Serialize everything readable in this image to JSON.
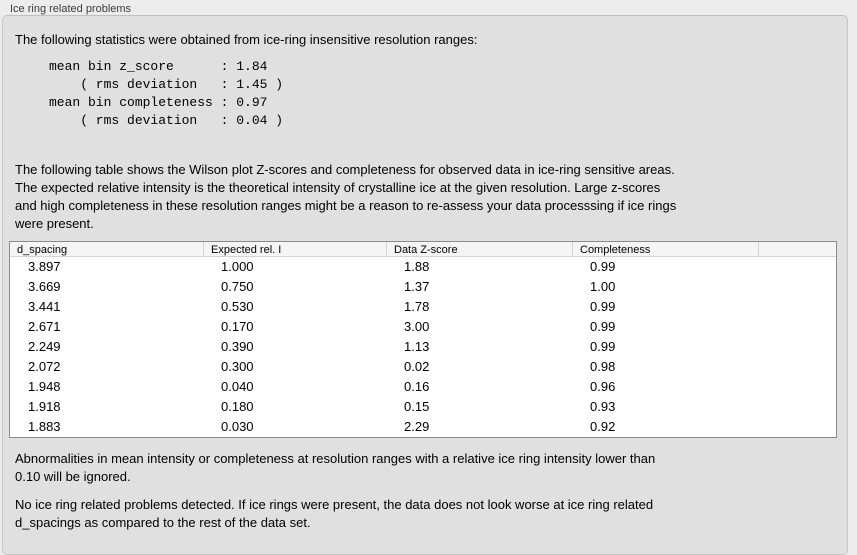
{
  "panel": {
    "title": "Ice ring related problems"
  },
  "intro": {
    "text": "The following statistics were obtained from ice-ring insensitive resolution ranges:"
  },
  "stats_block": {
    "text": "mean bin z_score      : 1.84\n    ( rms deviation   : 1.45 )\nmean bin completeness : 0.97\n    ( rms deviation   : 0.04 )"
  },
  "description": {
    "text": "The following table shows the Wilson plot Z-scores and completeness for observed data in ice-ring sensitive areas.\nThe expected relative intensity is the theoretical intensity of crystalline ice at the given resolution. Large z-scores\nand high completeness in these resolution ranges might be a reason to re-assess your data processsing if ice rings\nwere present."
  },
  "table": {
    "columns": [
      "d_spacing",
      "Expected rel. I",
      "Data Z-score",
      "Completeness",
      ""
    ],
    "rows": [
      [
        "3.897",
        "1.000",
        "1.88",
        "0.99"
      ],
      [
        "3.669",
        "0.750",
        "1.37",
        "1.00"
      ],
      [
        "3.441",
        "0.530",
        "1.78",
        "0.99"
      ],
      [
        "2.671",
        "0.170",
        "3.00",
        "0.99"
      ],
      [
        "2.249",
        "0.390",
        "1.13",
        "0.99"
      ],
      [
        "2.072",
        "0.300",
        "0.02",
        "0.98"
      ],
      [
        "1.948",
        "0.040",
        "0.16",
        "0.96"
      ],
      [
        "1.918",
        "0.180",
        "0.15",
        "0.93"
      ],
      [
        "1.883",
        "0.030",
        "2.29",
        "0.92"
      ]
    ]
  },
  "notes": {
    "ignore_note": "Abnormalities in mean intensity or completeness at resolution ranges with a relative ice ring intensity lower than\n0.10 will be ignored.",
    "conclusion": "No ice ring related problems detected. If ice rings were present, the data does not look worse at ice ring related\nd_spacings as compared to the rest of the data set."
  },
  "colors": {
    "window_bg": "#ececec",
    "groupbox_bg": "#e0e0e0",
    "groupbox_border": "#c6c6c6",
    "table_border": "#8b8b8b",
    "table_header_bg": "#f5f5f5"
  }
}
